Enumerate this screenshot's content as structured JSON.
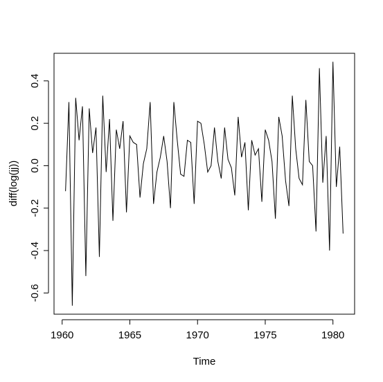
{
  "chart_data": {
    "type": "line",
    "title": "",
    "xlabel": "Time",
    "ylabel": "diff(log(jj))",
    "xlim": [
      1959.4,
      1981.6
    ],
    "ylim": [
      -0.7,
      0.53
    ],
    "xticks": [
      1960,
      1965,
      1970,
      1975,
      1980
    ],
    "yticks": [
      -0.6,
      -0.4,
      -0.2,
      0.0,
      0.2,
      0.4
    ],
    "ytick_labels": [
      "-0.6",
      "-0.4",
      "-0.2",
      "0.0",
      "0.2",
      "0.4"
    ],
    "grid": false,
    "legend": "none",
    "line_color": "#000000",
    "series": [
      {
        "x_start": 1960.25,
        "x_step": 0.25,
        "values": [
          -0.12,
          0.3,
          -0.66,
          0.32,
          0.12,
          0.28,
          -0.52,
          0.27,
          0.06,
          0.18,
          -0.43,
          0.33,
          -0.03,
          0.22,
          -0.26,
          0.17,
          0.08,
          0.21,
          -0.22,
          0.14,
          0.11,
          0.1,
          -0.15,
          0.01,
          0.08,
          0.3,
          -0.18,
          -0.03,
          0.04,
          0.14,
          0.02,
          -0.2,
          0.3,
          0.12,
          -0.04,
          -0.05,
          0.12,
          0.11,
          -0.18,
          0.21,
          0.2,
          0.1,
          -0.03,
          0.0,
          0.18,
          0.02,
          -0.06,
          0.18,
          0.03,
          -0.01,
          -0.14,
          0.23,
          0.04,
          0.11,
          -0.21,
          0.12,
          0.05,
          0.08,
          -0.17,
          0.17,
          0.12,
          0.02,
          -0.25,
          0.23,
          0.14,
          -0.07,
          -0.19,
          0.33,
          0.08,
          -0.06,
          -0.09,
          0.31,
          0.02,
          0.0,
          -0.31,
          0.46,
          -0.08,
          0.14,
          -0.4,
          0.49,
          -0.1,
          0.09,
          -0.32
        ]
      }
    ]
  }
}
